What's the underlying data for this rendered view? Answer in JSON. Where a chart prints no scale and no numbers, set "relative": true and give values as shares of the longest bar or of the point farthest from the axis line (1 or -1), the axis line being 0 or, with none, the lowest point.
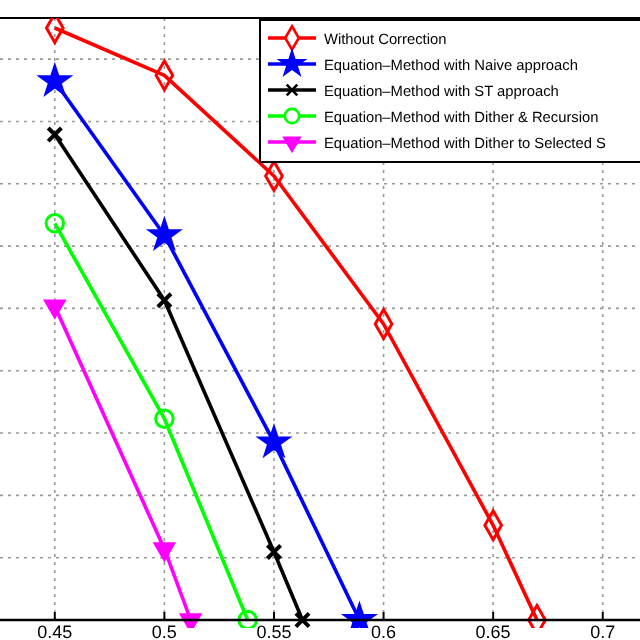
{
  "chart_data": {
    "type": "line",
    "relative": true,
    "xlim": [
      0.425,
      0.717
    ],
    "xticks": [
      0.45,
      0.5,
      0.55,
      0.6,
      0.65,
      0.7
    ],
    "grid": true,
    "legend": "top right",
    "line_style": "solid",
    "series": [
      {
        "name": "Without Correction",
        "color": "#ff0000",
        "marker": "diamond",
        "x": [
          0.45,
          0.5,
          0.55,
          0.6,
          0.65,
          0.67
        ],
        "values": [
          1,
          0.92,
          0.75,
          0.5,
          0.16,
          0
        ]
      },
      {
        "name": "Equation–Method with Naive approach",
        "color": "#0000ff",
        "marker": "star",
        "x": [
          0.45,
          0.5,
          0.55,
          0.589
        ],
        "values": [
          0.91,
          0.65,
          0.3,
          0
        ]
      },
      {
        "name": "Equation–Method with ST approach",
        "color": "#000000",
        "marker": "cross",
        "x": [
          0.45,
          0.5,
          0.55,
          0.563
        ],
        "values": [
          0.82,
          0.54,
          0.115,
          0
        ]
      },
      {
        "name": "Equation–Method with Dither & Recursion",
        "color": "#00ff00",
        "marker": "circle",
        "x": [
          0.45,
          0.5,
          0.538
        ],
        "values": [
          0.67,
          0.34,
          0
        ]
      },
      {
        "name": "Equation–Method with Dither to Selected S",
        "color": "#ff00ff",
        "marker": "triangle",
        "x": [
          0.45,
          0.5,
          0.512
        ],
        "values": [
          0.53,
          0.12,
          0
        ]
      }
    ]
  }
}
